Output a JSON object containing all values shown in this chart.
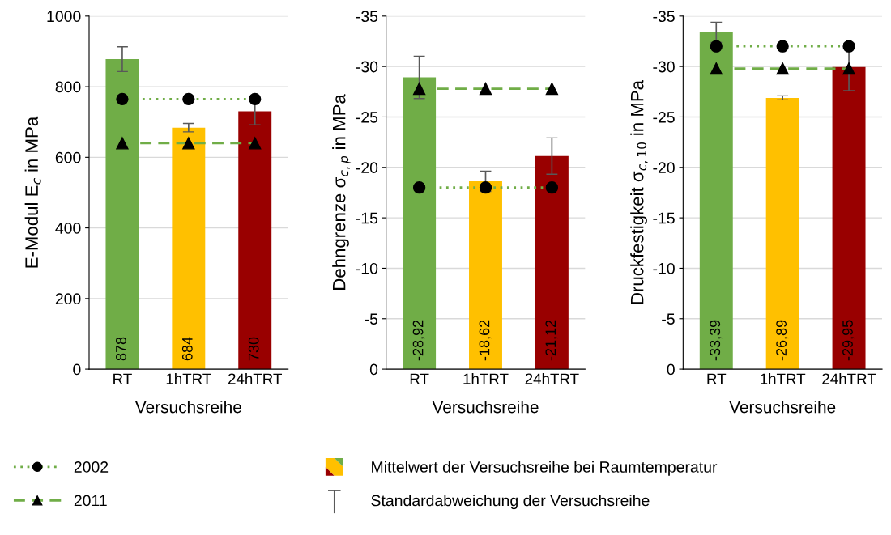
{
  "chart_data": [
    {
      "type": "bar",
      "ylabel": "E-Modul E$_{c}$ in MPa",
      "xlabel": "Versuchsreihe",
      "categories": [
        "RT",
        "1hTRT",
        "24hTRT"
      ],
      "ylim": [
        0,
        1000
      ],
      "yticks": [
        0,
        200,
        400,
        600,
        800,
        1000
      ],
      "grid": "y",
      "legend": "bottom",
      "series": [
        {
          "type": "bar",
          "colors": [
            "#70ad47",
            "#ffc000",
            "#990000"
          ],
          "values": [
            878,
            684,
            730
          ],
          "errors": [
            35,
            12,
            38
          ],
          "value_labels": [
            "878",
            "684",
            "730"
          ]
        },
        {
          "type": "line",
          "name": "2002",
          "color": "#70ad47",
          "line_style": "dotted",
          "marker": "circle",
          "values": [
            765,
            765,
            765
          ]
        },
        {
          "type": "line",
          "name": "2011",
          "color": "#70ad47",
          "line_style": "dashed",
          "marker": "triangle",
          "values": [
            640,
            640,
            640
          ]
        }
      ]
    },
    {
      "type": "bar",
      "ylabel": "Dehngrenze σ$_{c,p}$ in MPa",
      "xlabel": "Versuchsreihe",
      "categories": [
        "RT",
        "1hTRT",
        "24hTRT"
      ],
      "ylim": [
        0,
        -35
      ],
      "yticks": [
        0,
        -5,
        -10,
        -15,
        -20,
        -25,
        -30,
        -35
      ],
      "grid": "y",
      "legend": "bottom",
      "annotations": [
        "Standardabweichung der Versuchsreihe"
      ],
      "series": [
        {
          "type": "bar",
          "name": "Mittelwert der Versuchsreihe bei Raumtemperatur",
          "colors": [
            "#70ad47",
            "#ffc000",
            "#990000"
          ],
          "values": [
            -28.92,
            -18.62,
            -21.12
          ],
          "errors": [
            2.1,
            1.0,
            1.8
          ],
          "value_labels": [
            "-28,92",
            "-18,62",
            "-21,12"
          ]
        },
        {
          "type": "line",
          "color": "#70ad47",
          "line_style": "dotted",
          "marker": "circle",
          "values": [
            -18,
            -18,
            -18
          ]
        },
        {
          "type": "line",
          "color": "#70ad47",
          "line_style": "dashed",
          "marker": "triangle",
          "values": [
            -27.8,
            -27.8,
            -27.8
          ]
        }
      ]
    },
    {
      "type": "bar",
      "ylabel": "Druckfestigkeit σ$_{c,10}$ in MPa",
      "xlabel": "Versuchsreihe",
      "categories": [
        "RT",
        "1hTRT",
        "24hTRT"
      ],
      "ylim": [
        0,
        -35
      ],
      "yticks": [
        0,
        -5,
        -10,
        -15,
        -20,
        -25,
        -30,
        -35
      ],
      "grid": "y",
      "series": [
        {
          "type": "bar",
          "colors": [
            "#70ad47",
            "#ffc000",
            "#990000"
          ],
          "values": [
            -33.39,
            -26.89,
            -29.95
          ],
          "errors": [
            1.0,
            0.2,
            2.35
          ],
          "value_labels": [
            "-33,39",
            "-26,89",
            "-29,95"
          ]
        },
        {
          "type": "line",
          "color": "#70ad47",
          "line_style": "dotted",
          "marker": "circle",
          "values": [
            -32,
            -32,
            -32
          ]
        },
        {
          "type": "line",
          "color": "#70ad47",
          "line_style": "dashed",
          "marker": "triangle",
          "values": [
            -29.8,
            -29.8,
            -29.8
          ]
        }
      ]
    }
  ]
}
